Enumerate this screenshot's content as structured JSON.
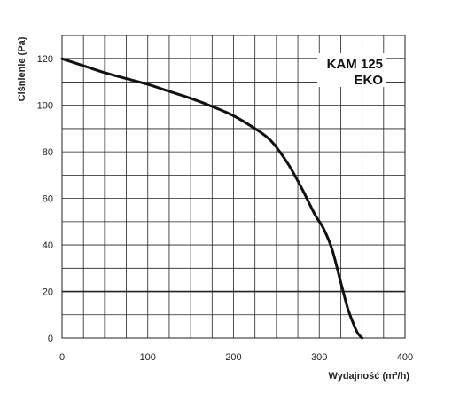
{
  "chart_data": {
    "type": "line",
    "title": "",
    "xlabel": "Wydajność (m³/h)",
    "ylabel": "Ciśnienie (Pa)",
    "xlim": [
      0,
      400
    ],
    "ylim": [
      0,
      130
    ],
    "x_ticks": [
      "0",
      "100",
      "200",
      "300",
      "400"
    ],
    "y_ticks": [
      "0",
      "20",
      "40",
      "60",
      "80",
      "100",
      "120"
    ],
    "grid": true,
    "annotation": [
      "KAM 125",
      "EKO"
    ],
    "series": [
      {
        "x": [
          0,
          25,
          50,
          75,
          100,
          125,
          150,
          175,
          200,
          225,
          240,
          250,
          265,
          280,
          295,
          305,
          315,
          325,
          333,
          340,
          345,
          350
        ],
        "y": [
          120,
          117,
          114,
          111.5,
          109,
          106,
          103,
          99.5,
          95.5,
          90,
          86,
          82,
          74,
          64,
          53,
          47,
          38,
          24,
          13,
          6,
          2,
          0
        ]
      }
    ],
    "colors": {
      "line": "#111111",
      "grid": "#222222"
    }
  }
}
